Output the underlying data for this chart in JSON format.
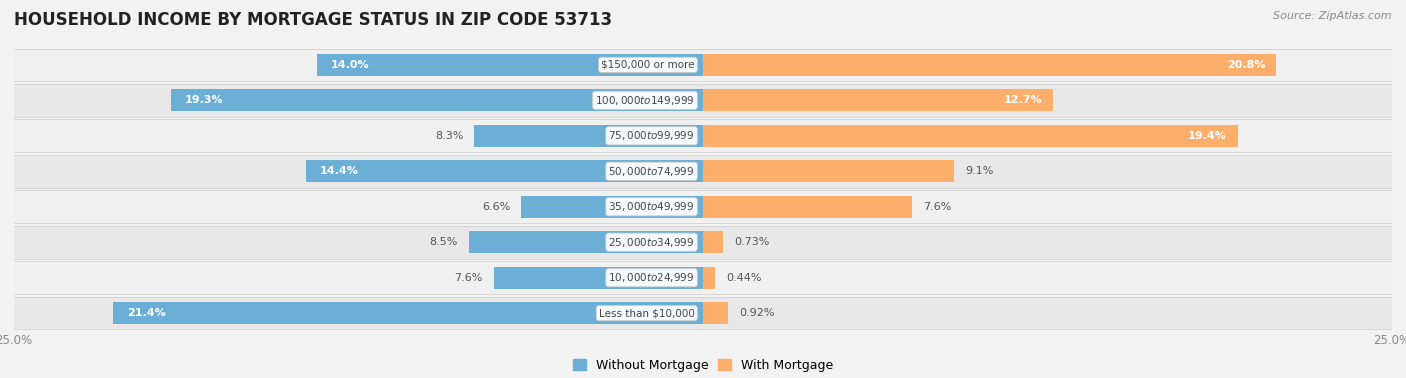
{
  "title": "HOUSEHOLD INCOME BY MORTGAGE STATUS IN ZIP CODE 53713",
  "source": "Source: ZipAtlas.com",
  "categories": [
    "Less than $10,000",
    "$10,000 to $24,999",
    "$25,000 to $34,999",
    "$35,000 to $49,999",
    "$50,000 to $74,999",
    "$75,000 to $99,999",
    "$100,000 to $149,999",
    "$150,000 or more"
  ],
  "without_mortgage": [
    21.4,
    7.6,
    8.5,
    6.6,
    14.4,
    8.3,
    19.3,
    14.0
  ],
  "with_mortgage": [
    0.92,
    0.44,
    0.73,
    7.6,
    9.1,
    19.4,
    12.7,
    20.8
  ],
  "without_mortgage_color": "#6baed6",
  "with_mortgage_color": "#fdae6b",
  "bg_color": "#f2f2f2",
  "row_bg_light": "#f7f7f7",
  "row_bg_dark": "#ebebeb",
  "axis_limit": 25.0,
  "title_fontsize": 12,
  "source_fontsize": 8,
  "label_fontsize": 8,
  "tick_fontsize": 8.5,
  "legend_fontsize": 9,
  "cat_fontsize": 7.5,
  "bar_height": 0.62
}
